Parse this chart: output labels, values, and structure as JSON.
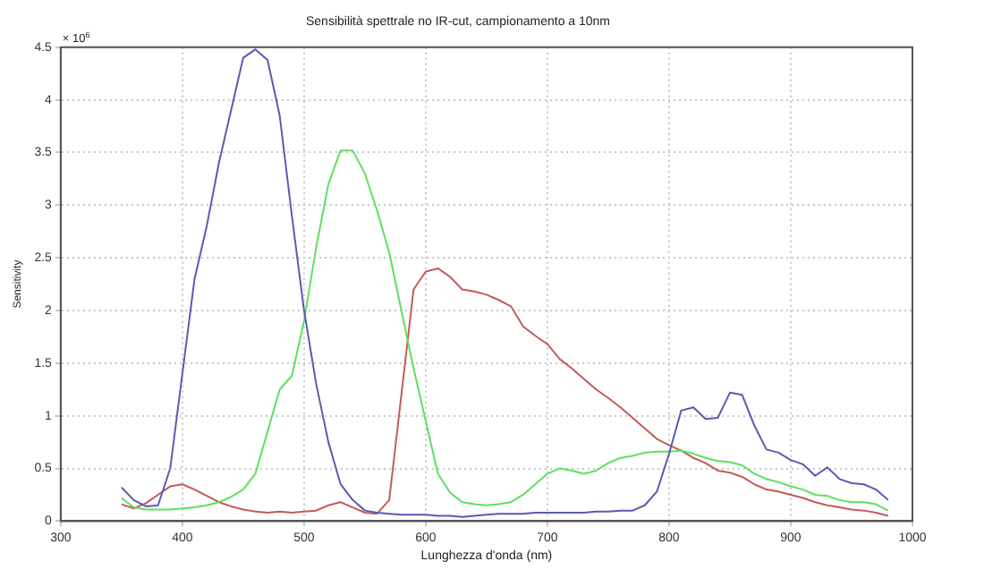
{
  "chart_data": {
    "type": "line",
    "title": "Sensibilità spettrale no IR-cut, campionamento a 10nm",
    "xlabel": "Lunghezza d'onda (nm)",
    "ylabel": "Sensitivity",
    "annotations": [
      "× 10$^{6}$"
    ],
    "x": [
      350,
      360,
      370,
      380,
      390,
      400,
      410,
      420,
      430,
      440,
      450,
      460,
      470,
      480,
      490,
      500,
      510,
      520,
      530,
      540,
      550,
      560,
      570,
      580,
      590,
      600,
      610,
      620,
      630,
      640,
      650,
      660,
      670,
      680,
      690,
      700,
      710,
      720,
      730,
      740,
      750,
      760,
      770,
      780,
      790,
      800,
      810,
      820,
      830,
      840,
      850,
      860,
      870,
      880,
      890,
      900,
      910,
      920,
      930,
      940,
      950,
      960,
      970,
      980
    ],
    "series": [
      {
        "color": "#5a5ab4",
        "values": [
          0.32,
          0.2,
          0.14,
          0.15,
          0.5,
          1.4,
          2.3,
          2.8,
          3.4,
          3.9,
          4.4,
          4.48,
          4.38,
          3.85,
          2.9,
          2.0,
          1.3,
          0.75,
          0.35,
          0.2,
          0.1,
          0.08,
          0.07,
          0.06,
          0.06,
          0.06,
          0.05,
          0.05,
          0.04,
          0.05,
          0.06,
          0.07,
          0.07,
          0.07,
          0.08,
          0.08,
          0.08,
          0.08,
          0.08,
          0.09,
          0.09,
          0.1,
          0.1,
          0.15,
          0.28,
          0.64,
          1.05,
          1.08,
          0.97,
          0.98,
          1.22,
          1.2,
          0.91,
          0.68,
          0.65,
          0.58,
          0.54,
          0.43,
          0.51,
          0.4,
          0.36,
          0.35,
          0.3,
          0.2
        ]
      },
      {
        "color": "#5ee05e",
        "values": [
          0.22,
          0.13,
          0.11,
          0.11,
          0.11,
          0.12,
          0.13,
          0.15,
          0.18,
          0.23,
          0.3,
          0.45,
          0.85,
          1.25,
          1.38,
          1.9,
          2.6,
          3.2,
          3.52,
          3.52,
          3.3,
          2.95,
          2.55,
          2.0,
          1.45,
          0.95,
          0.45,
          0.27,
          0.18,
          0.16,
          0.15,
          0.16,
          0.18,
          0.25,
          0.35,
          0.45,
          0.5,
          0.48,
          0.45,
          0.48,
          0.55,
          0.6,
          0.62,
          0.65,
          0.66,
          0.66,
          0.67,
          0.64,
          0.6,
          0.57,
          0.56,
          0.53,
          0.45,
          0.4,
          0.37,
          0.33,
          0.3,
          0.25,
          0.24,
          0.2,
          0.18,
          0.18,
          0.16,
          0.1
        ]
      },
      {
        "color": "#c45a5a",
        "values": [
          0.16,
          0.12,
          0.17,
          0.25,
          0.33,
          0.35,
          0.3,
          0.24,
          0.18,
          0.14,
          0.11,
          0.09,
          0.08,
          0.09,
          0.08,
          0.09,
          0.1,
          0.15,
          0.18,
          0.13,
          0.08,
          0.07,
          0.2,
          1.2,
          2.2,
          2.37,
          2.4,
          2.32,
          2.2,
          2.18,
          2.15,
          2.1,
          2.04,
          1.85,
          1.76,
          1.68,
          1.54,
          1.45,
          1.35,
          1.25,
          1.17,
          1.08,
          0.98,
          0.88,
          0.78,
          0.72,
          0.67,
          0.6,
          0.55,
          0.48,
          0.46,
          0.42,
          0.35,
          0.3,
          0.28,
          0.25,
          0.22,
          0.18,
          0.15,
          0.13,
          0.11,
          0.1,
          0.08,
          0.05
        ]
      }
    ],
    "xlim": [
      300,
      1000
    ],
    "xticks": [
      300,
      400,
      500,
      600,
      700,
      800,
      900,
      1000
    ],
    "ylim": [
      0,
      4.5
    ],
    "yticks": [
      0,
      0.5,
      1,
      1.5,
      2,
      2.5,
      3,
      3.5,
      4,
      4.5
    ],
    "grid": true,
    "legend": false,
    "marker": "none",
    "line_style": "solid"
  }
}
